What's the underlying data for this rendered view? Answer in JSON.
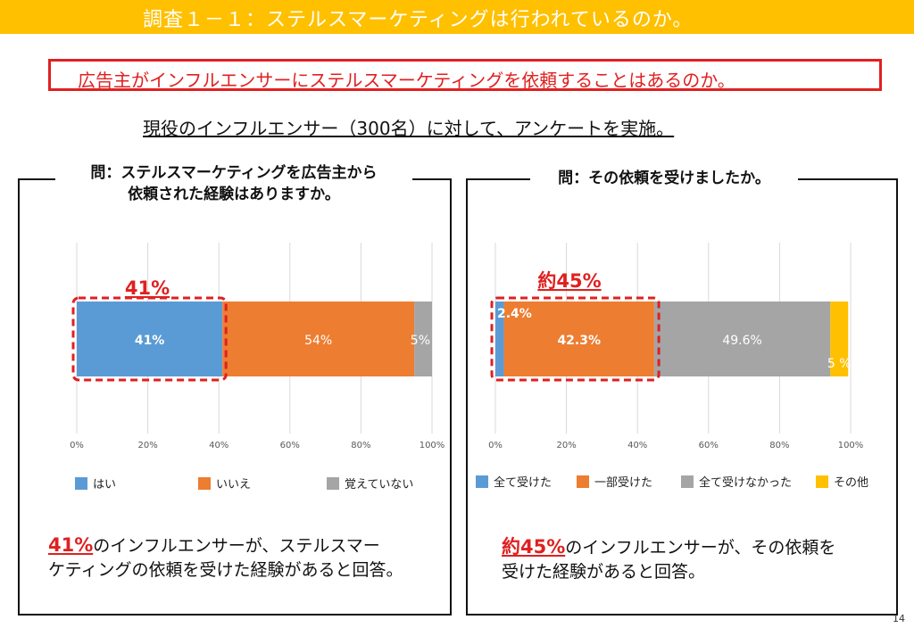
{
  "slide": {
    "title": "調査１－１：ステルスマーケティングは行われているのか。",
    "question_box": "広告主がインフルエンサーにステルスマーケティングを依頼することはあるのか。",
    "survey_note": "現役のインフルエンサー（300名）に対して、アンケートを実施。",
    "page_number": "14"
  },
  "left_panel": {
    "question_line1": "問：ステルスマーケティングを広告主から",
    "question_line2": "依頼された経験はありますか。",
    "highlight_label": "41%",
    "callout_highlight": "41%",
    "callout_line1_rest": "のインフルエンサーが、ステルスマー",
    "callout_line2": "ケティングの依頼を受けた経験があると回答。"
  },
  "right_panel": {
    "question": "問：その依頼を受けましたか。",
    "highlight_label": "約45%",
    "callout_highlight": "約45%",
    "callout_line1_rest": "のインフルエンサーが、その依頼を",
    "callout_line2": "受けた経験があると回答。"
  },
  "chart_data": [
    {
      "type": "bar",
      "orientation": "horizontal",
      "stacked": true,
      "xlim": [
        0,
        100
      ],
      "ticks": [
        "0%",
        "20%",
        "40%",
        "60%",
        "80%",
        "100%"
      ],
      "grid": true,
      "legend_position": "bottom",
      "series": [
        {
          "name": "はい",
          "value": 41,
          "label": "41%",
          "color": "#5b9bd5"
        },
        {
          "name": "いいえ",
          "value": 54,
          "label": "54%",
          "color": "#ed7d31"
        },
        {
          "name": "覚えていない",
          "value": 5,
          "label": "5%",
          "color": "#a5a5a5"
        }
      ]
    },
    {
      "type": "bar",
      "orientation": "horizontal",
      "stacked": true,
      "xlim": [
        0,
        100
      ],
      "ticks": [
        "0%",
        "20%",
        "40%",
        "60%",
        "80%",
        "100%"
      ],
      "grid": true,
      "legend_position": "bottom",
      "series": [
        {
          "name": "全て受けた",
          "value": 2.4,
          "label": "2.4%",
          "color": "#5b9bd5"
        },
        {
          "name": "一部受けた",
          "value": 42.3,
          "label": "42.3%",
          "color": "#ed7d31"
        },
        {
          "name": "全て受けなかった",
          "value": 49.6,
          "label": "49.6%",
          "color": "#a5a5a5"
        },
        {
          "name": "その他",
          "value": 5,
          "label": "5 %",
          "color": "#ffc000"
        }
      ]
    }
  ]
}
